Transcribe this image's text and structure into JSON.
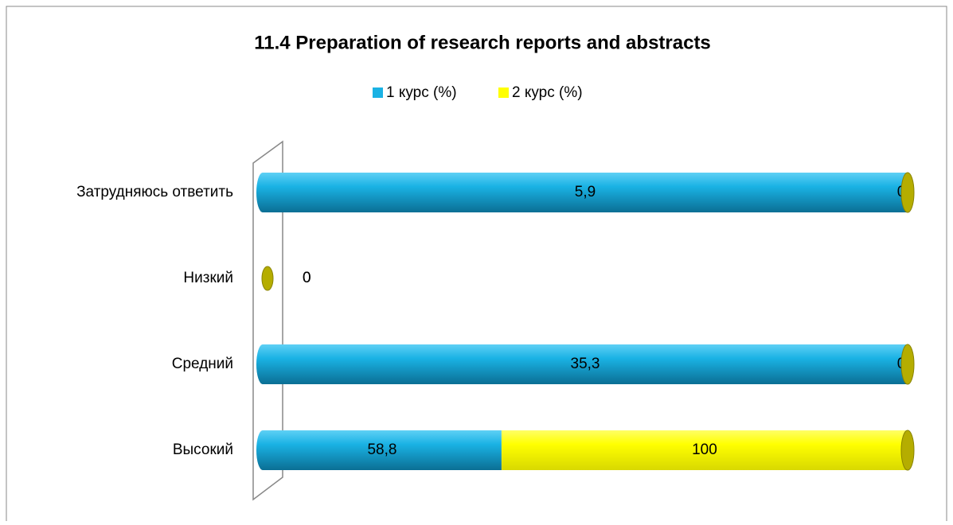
{
  "chart_data": {
    "type": "bar",
    "orientation": "horizontal",
    "stacking": "percent",
    "title": "11.4 Preparation of research reports and abstracts",
    "categories": [
      "Затрудняюсь ответить",
      "Низкий",
      "Средний",
      "Высокий"
    ],
    "series": [
      {
        "name": "1 курс (%)",
        "color": "#1ab2e4",
        "values": [
          5.9,
          0,
          35.3,
          58.8
        ],
        "value_labels": [
          "5,9",
          "0",
          "35,3",
          "58,8"
        ]
      },
      {
        "name": "2 курс (%)",
        "color": "#ffff00",
        "values": [
          0,
          0,
          0,
          100
        ],
        "value_labels": [
          "0",
          "0",
          "0",
          "100"
        ]
      }
    ],
    "legend": "top"
  }
}
